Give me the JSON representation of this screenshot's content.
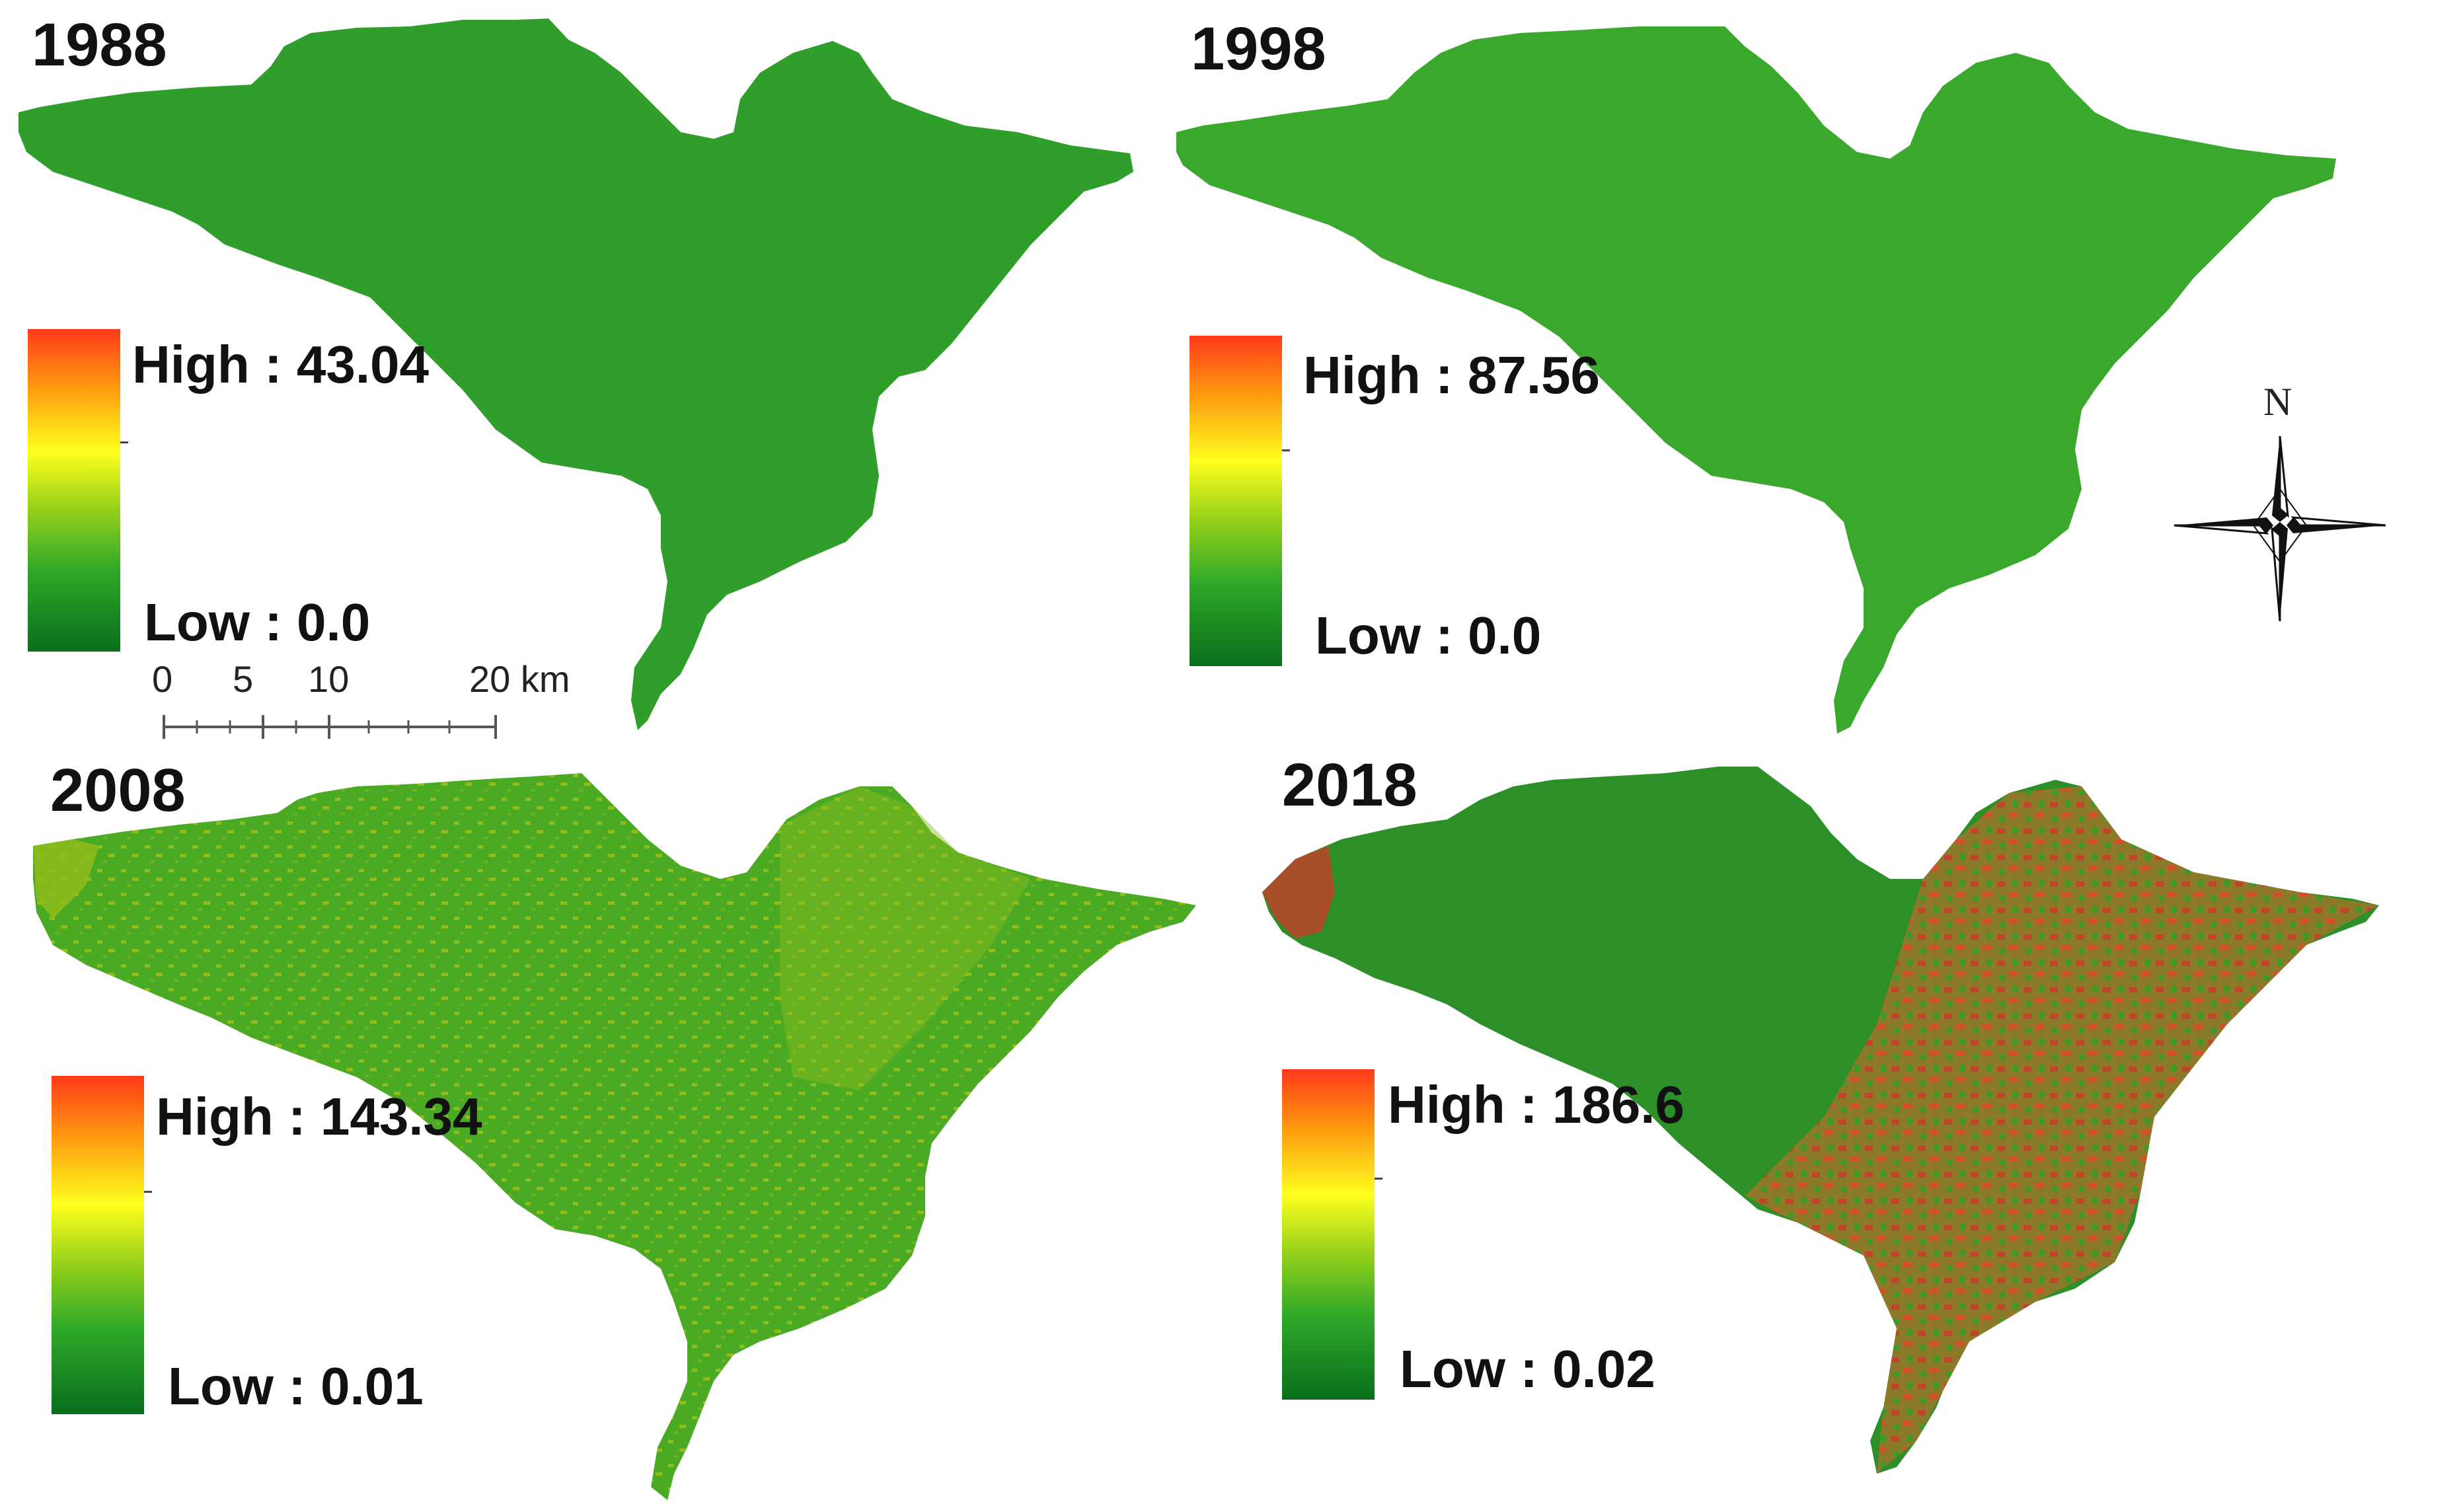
{
  "panels": [
    {
      "year": "1988",
      "high_label": "High : 43.04",
      "low_label": "Low : 0.0"
    },
    {
      "year": "1998",
      "high_label": "High : 87.56",
      "low_label": "Low : 0.0"
    },
    {
      "year": "2008",
      "high_label": "High : 143.34",
      "low_label": "Low : 0.01"
    },
    {
      "year": "2018",
      "high_label": "High : 186.6",
      "low_label": "Low : 0.02"
    }
  ],
  "scale_bar": {
    "labels": [
      "0",
      "5",
      "10",
      "20 km"
    ]
  },
  "north_arrow": {
    "label": "N"
  },
  "colors": {
    "high": "#ff3a1a",
    "mid": "#ffff1e",
    "low": "#0a6e1c",
    "land": "#2f9e2a",
    "accent_2008": "#8fbd1e",
    "accent_2018": "#c0432a"
  }
}
